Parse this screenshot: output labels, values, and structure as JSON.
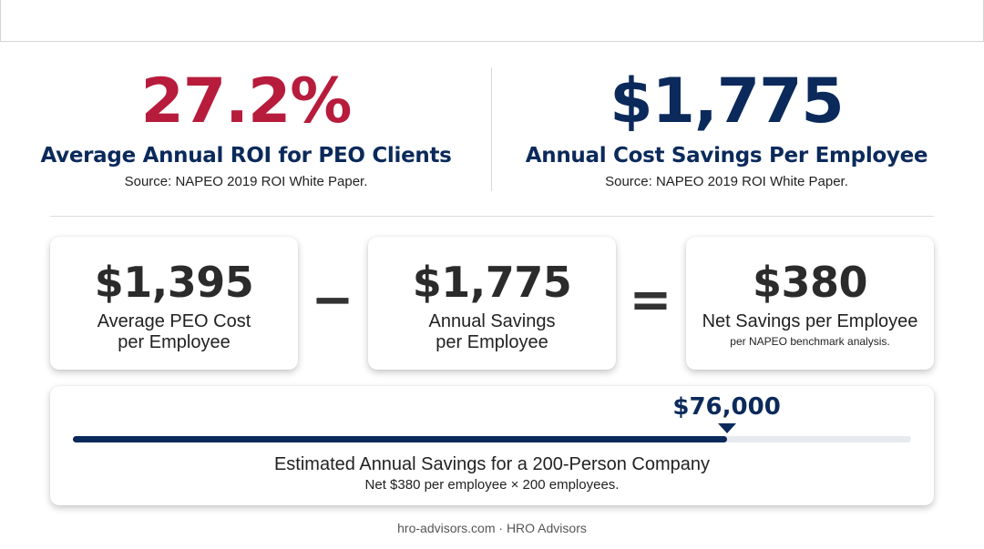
{
  "stats": [
    {
      "value": "27.2%",
      "label": "Average Annual ROI for PEO Clients",
      "source": "Source: NAPEO 2019 ROI White Paper.",
      "color": "#b71c3c"
    },
    {
      "value": "$1,775",
      "label": "Annual Cost Savings Per Employee",
      "source": "Source: NAPEO 2019 ROI White Paper.",
      "color": "#0b2a5b"
    }
  ],
  "equation": {
    "cost": {
      "value": "$1,395",
      "label_line1": "Average PEO Cost",
      "label_line2": "per Employee"
    },
    "minus": "−",
    "savings": {
      "value": "$1,775",
      "label_line1": "Annual Savings",
      "label_line2": "per Employee"
    },
    "equals": "=",
    "net": {
      "value": "$380",
      "label": "Net Savings per Employee",
      "note": "per NAPEO benchmark analysis."
    }
  },
  "estimate": {
    "value": "$76,000",
    "progress": 0.78,
    "title": "Estimated Annual Savings for a 200-Person Company",
    "note": "Net $380 per employee × 200 employees."
  },
  "footer": "hro-advisors.com · HRO Advisors"
}
